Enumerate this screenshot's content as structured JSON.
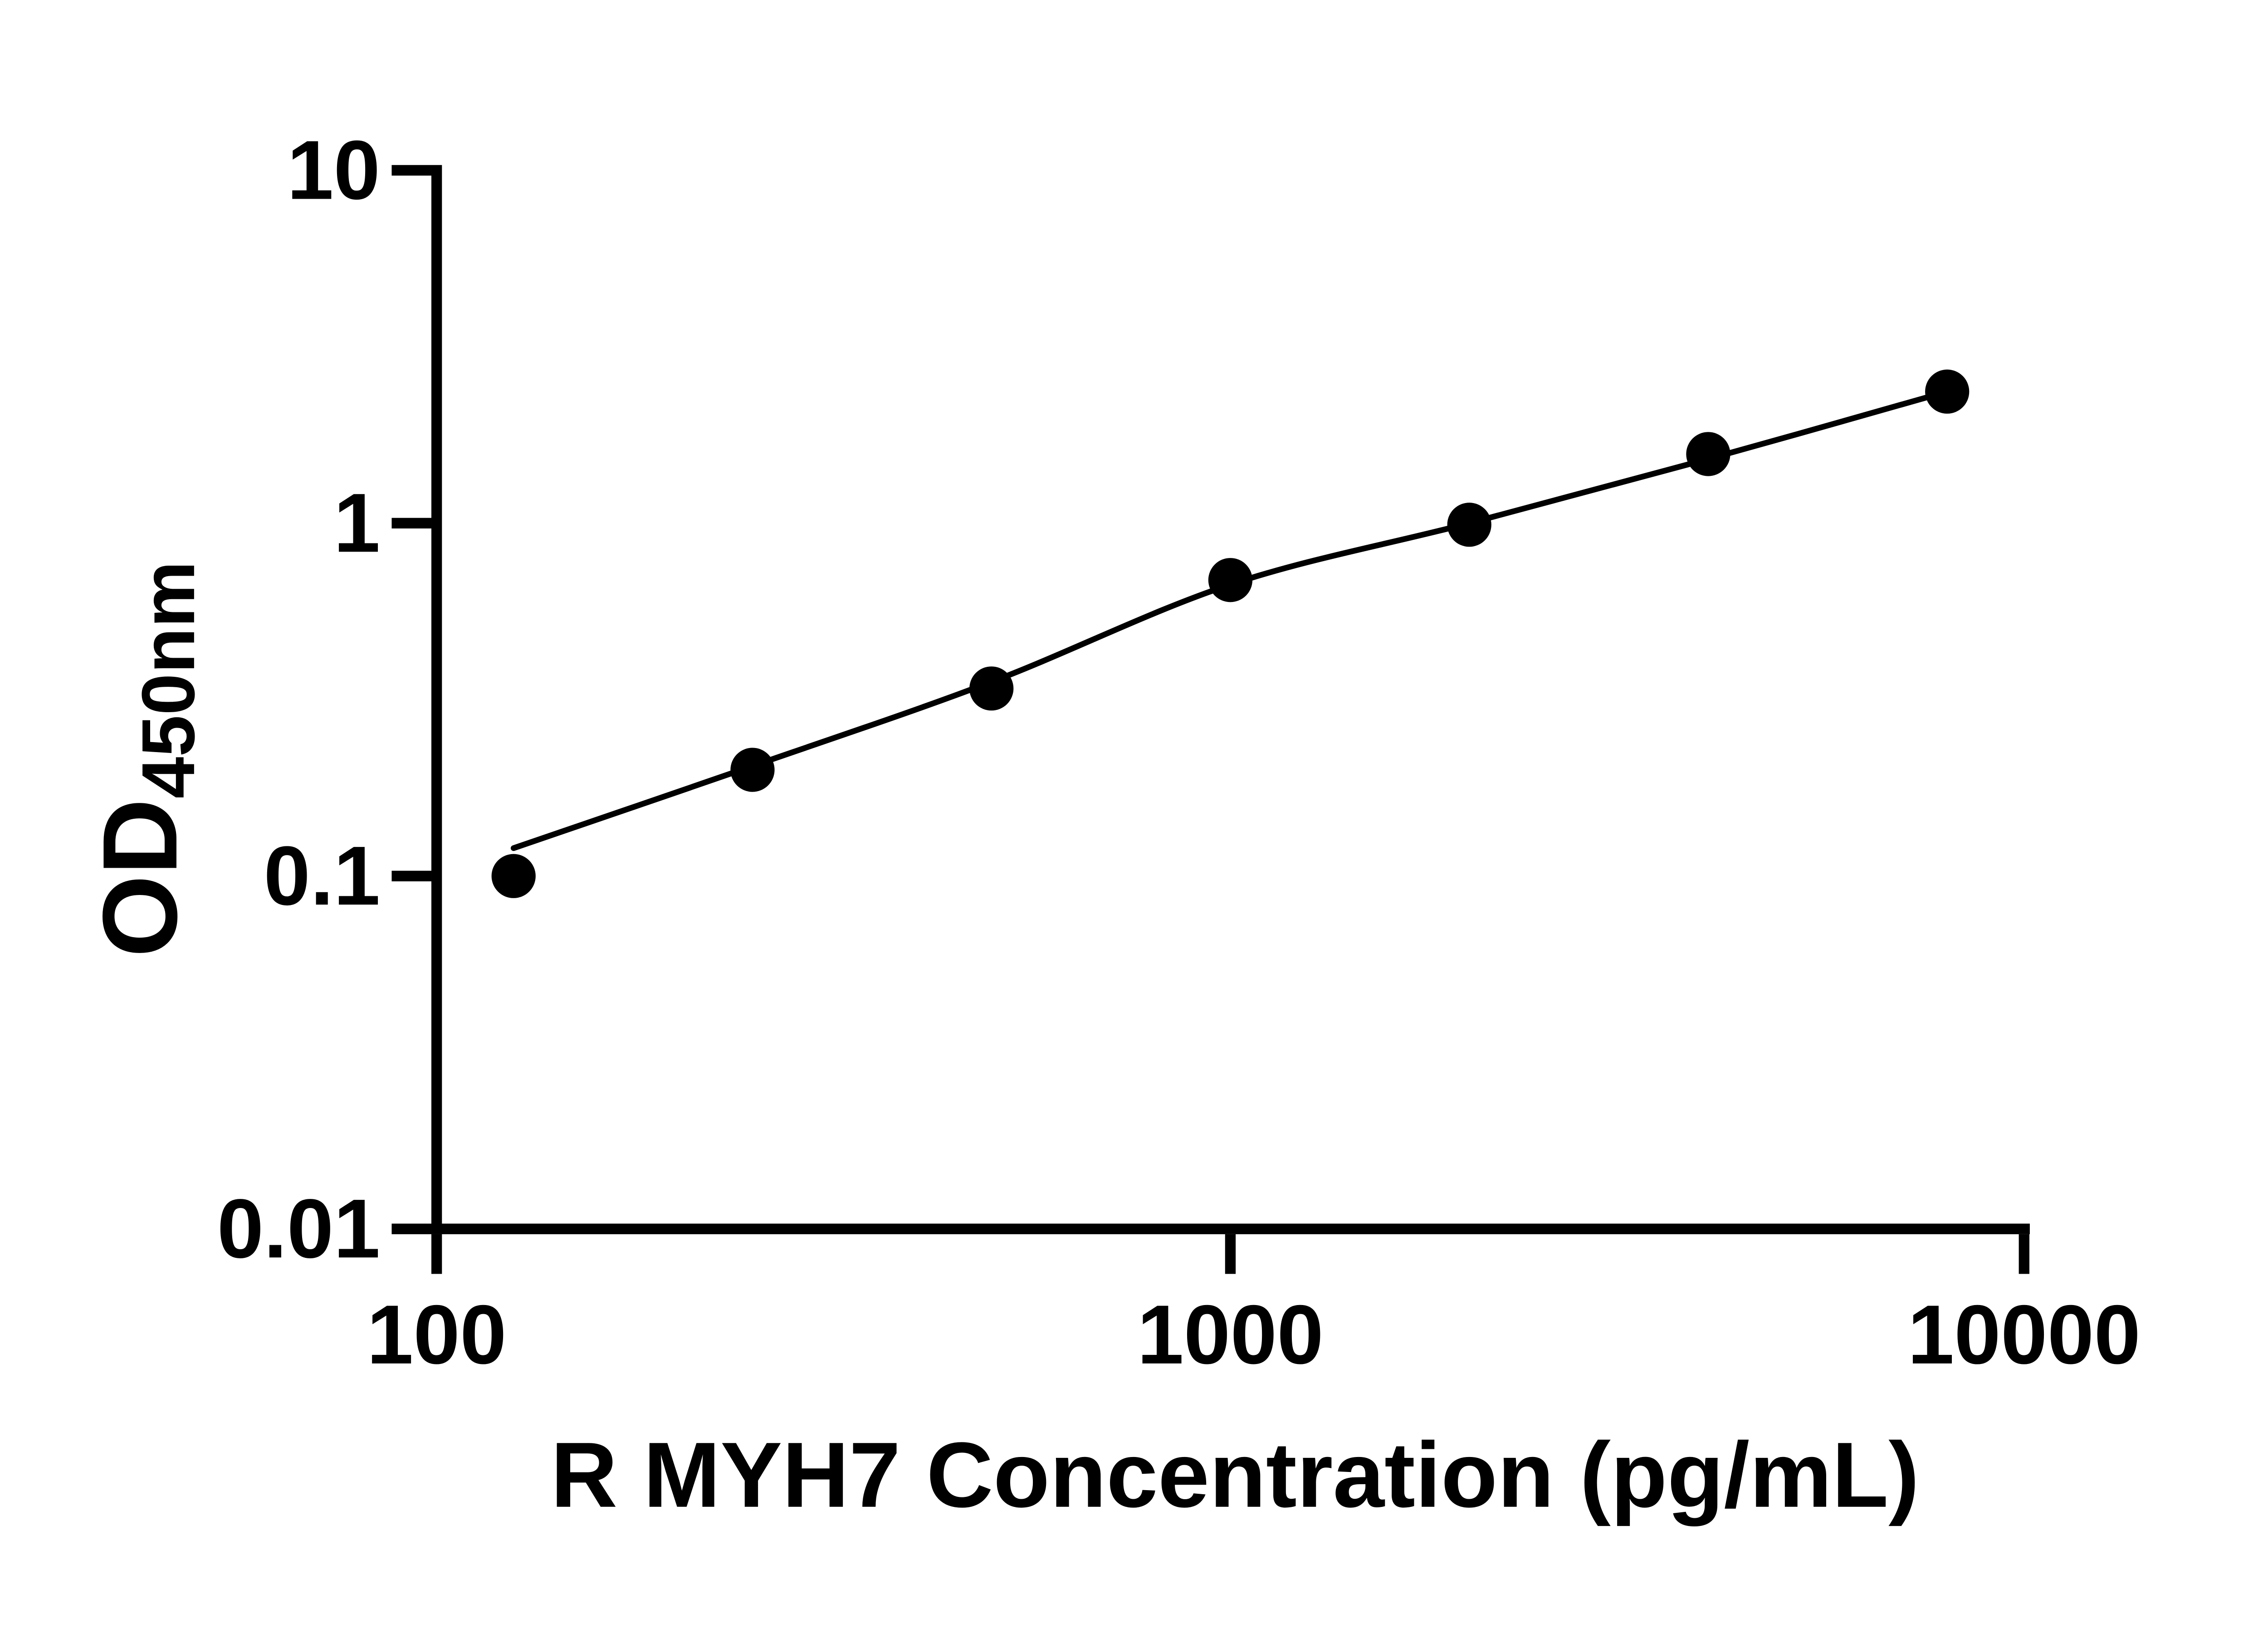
{
  "figure": {
    "background_color": "#ffffff",
    "ink_color": "#000000"
  },
  "chart_data": {
    "type": "scatter",
    "title": "",
    "xlabel": "R MYH7 Concentration (pg/mL)",
    "ylabel_main": "OD",
    "ylabel_sub": "450nm",
    "x_scale": "log",
    "y_scale": "log",
    "xlim": [
      100,
      10000
    ],
    "ylim": [
      0.01,
      10
    ],
    "grid": false,
    "legend": "none",
    "x_ticks": [
      {
        "value": 100,
        "label": "100"
      },
      {
        "value": 1000,
        "label": "1000"
      },
      {
        "value": 10000,
        "label": "10000"
      }
    ],
    "y_ticks": [
      {
        "value": 10,
        "label": "10"
      },
      {
        "value": 1,
        "label": "1"
      },
      {
        "value": 0.1,
        "label": "0.1"
      },
      {
        "value": 0.01,
        "label": "0.01"
      }
    ],
    "series": [
      {
        "name": "standard-curve-points",
        "marker": "filled-circle",
        "marker_color": "#000000",
        "points": [
          {
            "x": 125,
            "y": 0.1
          },
          {
            "x": 250,
            "y": 0.2
          },
          {
            "x": 500,
            "y": 0.34
          },
          {
            "x": 1000,
            "y": 0.69
          },
          {
            "x": 2000,
            "y": 0.99
          },
          {
            "x": 4000,
            "y": 1.57
          },
          {
            "x": 8000,
            "y": 2.36
          }
        ]
      }
    ],
    "fit_curve": {
      "name": "fitted-standard-curve",
      "color": "#000000",
      "samples": [
        {
          "x": 125,
          "y": 0.12
        },
        {
          "x": 250,
          "y": 0.205
        },
        {
          "x": 500,
          "y": 0.355
        },
        {
          "x": 1000,
          "y": 0.67
        },
        {
          "x": 2000,
          "y": 1.0
        },
        {
          "x": 4000,
          "y": 1.52
        },
        {
          "x": 8000,
          "y": 2.36
        }
      ]
    }
  }
}
